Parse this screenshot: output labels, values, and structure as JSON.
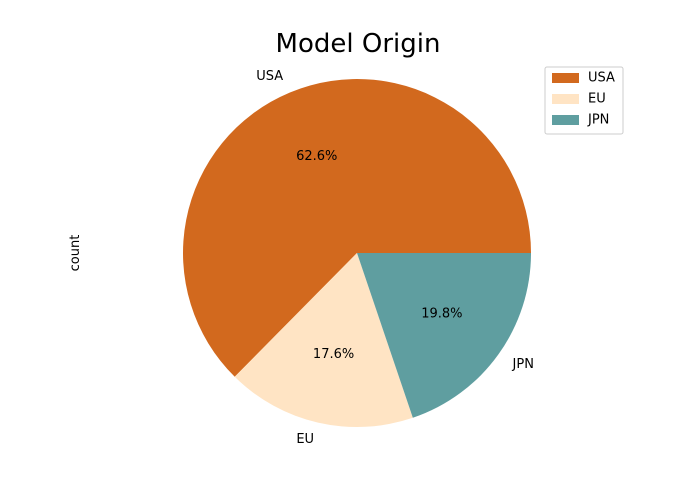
{
  "chart_data": {
    "type": "pie",
    "title": "Model Origin",
    "ylabel": "count",
    "categories": [
      "USA",
      "EU",
      "JPN"
    ],
    "values": [
      62.6,
      17.6,
      19.8
    ],
    "percent_labels": [
      "62.6%",
      "17.6%",
      "19.8%"
    ],
    "colors": [
      "#d2691e",
      "#ffe4c4",
      "#5f9ea0"
    ],
    "start_angle_deg": 0,
    "direction": "counterclockwise",
    "legend": {
      "entries": [
        "USA",
        "EU",
        "JPN"
      ],
      "placement": "top-right"
    }
  }
}
